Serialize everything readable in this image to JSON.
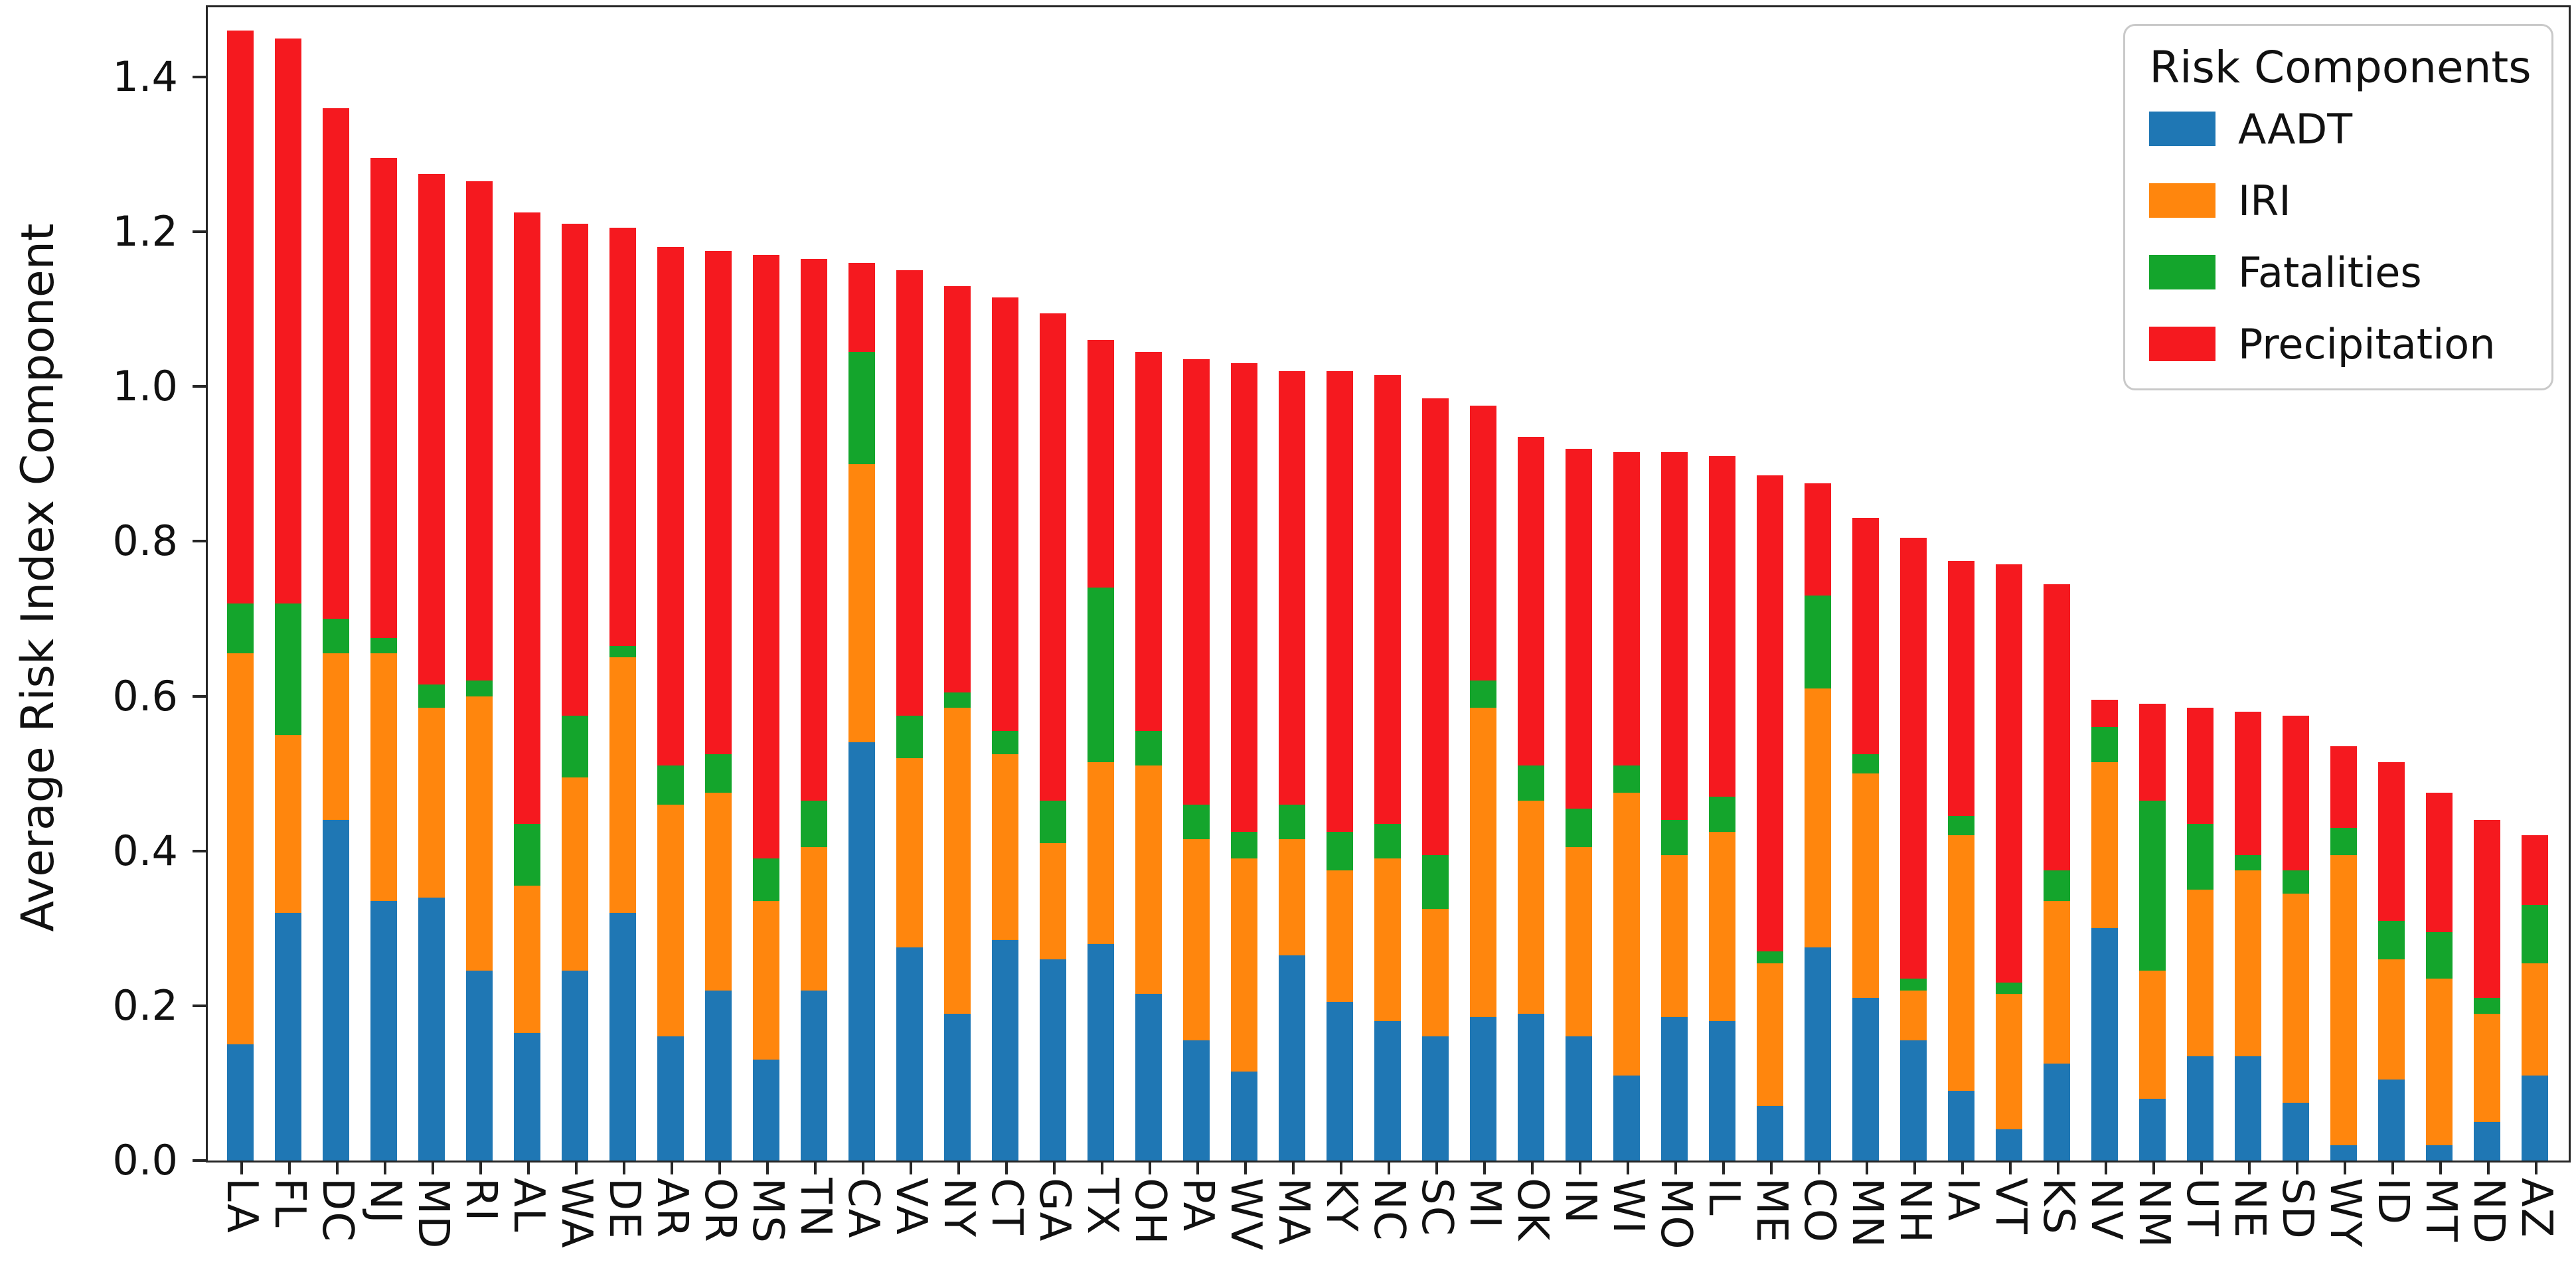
{
  "chart_data": {
    "type": "bar",
    "stacked": true,
    "title": "",
    "xlabel": "",
    "ylabel": "Average Risk Index Component",
    "ylim": [
      0,
      1.49
    ],
    "yticks": [
      "0.0",
      "0.2",
      "0.4",
      "0.6",
      "0.8",
      "1.0",
      "1.2",
      "1.4"
    ],
    "ytick_values": [
      0.0,
      0.2,
      0.4,
      0.6,
      0.8,
      1.0,
      1.2,
      1.4
    ],
    "grid": false,
    "legend": {
      "title": "Risk Components",
      "position": "upper right",
      "entries": [
        "AADT",
        "IRI",
        "Fatalities",
        "Precipitation"
      ]
    },
    "categories": [
      "LA",
      "FL",
      "DC",
      "NJ",
      "MD",
      "RI",
      "AL",
      "WA",
      "DE",
      "AR",
      "OR",
      "MS",
      "TN",
      "CA",
      "VA",
      "NY",
      "CT",
      "GA",
      "TX",
      "OH",
      "PA",
      "WV",
      "MA",
      "KY",
      "NC",
      "SC",
      "MI",
      "OK",
      "IN",
      "WI",
      "MO",
      "IL",
      "ME",
      "CO",
      "MN",
      "NH",
      "IA",
      "VT",
      "KS",
      "NV",
      "NM",
      "UT",
      "NE",
      "SD",
      "WY",
      "ID",
      "MT",
      "ND",
      "AZ"
    ],
    "series": [
      {
        "name": "AADT",
        "color": "#1f77b4",
        "values": [
          0.15,
          0.32,
          0.44,
          0.335,
          0.34,
          0.245,
          0.165,
          0.245,
          0.32,
          0.16,
          0.22,
          0.13,
          0.22,
          0.54,
          0.275,
          0.19,
          0.285,
          0.26,
          0.28,
          0.215,
          0.155,
          0.115,
          0.265,
          0.205,
          0.18,
          0.16,
          0.185,
          0.19,
          0.16,
          0.11,
          0.185,
          0.18,
          0.07,
          0.275,
          0.21,
          0.155,
          0.09,
          0.04,
          0.125,
          0.3,
          0.08,
          0.135,
          0.135,
          0.075,
          0.02,
          0.105,
          0.02,
          0.05,
          0.11
        ]
      },
      {
        "name": "IRI",
        "color": "#ff860d",
        "values": [
          0.505,
          0.23,
          0.215,
          0.32,
          0.245,
          0.355,
          0.19,
          0.25,
          0.33,
          0.3,
          0.255,
          0.205,
          0.185,
          0.36,
          0.245,
          0.395,
          0.24,
          0.15,
          0.235,
          0.295,
          0.26,
          0.275,
          0.15,
          0.17,
          0.21,
          0.165,
          0.4,
          0.275,
          0.245,
          0.365,
          0.21,
          0.245,
          0.185,
          0.335,
          0.29,
          0.065,
          0.33,
          0.175,
          0.21,
          0.215,
          0.165,
          0.215,
          0.24,
          0.27,
          0.375,
          0.155,
          0.215,
          0.14,
          0.145
        ]
      },
      {
        "name": "Fatalities",
        "color": "#14a52c",
        "values": [
          0.065,
          0.17,
          0.045,
          0.02,
          0.03,
          0.02,
          0.08,
          0.08,
          0.015,
          0.05,
          0.05,
          0.055,
          0.06,
          0.145,
          0.055,
          0.02,
          0.03,
          0.055,
          0.225,
          0.045,
          0.045,
          0.035,
          0.045,
          0.05,
          0.045,
          0.07,
          0.035,
          0.045,
          0.05,
          0.035,
          0.045,
          0.045,
          0.015,
          0.12,
          0.025,
          0.015,
          0.025,
          0.015,
          0.04,
          0.045,
          0.22,
          0.085,
          0.02,
          0.03,
          0.035,
          0.05,
          0.06,
          0.02,
          0.075
        ]
      },
      {
        "name": "Precipitation",
        "color": "#f5191f",
        "values": [
          0.74,
          0.73,
          0.66,
          0.62,
          0.66,
          0.645,
          0.79,
          0.635,
          0.54,
          0.67,
          0.65,
          0.78,
          0.7,
          0.115,
          0.575,
          0.525,
          0.56,
          0.63,
          0.32,
          0.49,
          0.575,
          0.605,
          0.56,
          0.595,
          0.58,
          0.59,
          0.355,
          0.425,
          0.465,
          0.405,
          0.475,
          0.44,
          0.615,
          0.145,
          0.305,
          0.57,
          0.33,
          0.54,
          0.37,
          0.035,
          0.125,
          0.15,
          0.185,
          0.2,
          0.105,
          0.205,
          0.18,
          0.23,
          0.09
        ]
      }
    ]
  },
  "y_axis": {
    "title": "Average Risk Index Component"
  },
  "legend_box": {
    "title": "Risk Components",
    "items": [
      {
        "label": "AADT",
        "color": "#1f77b4"
      },
      {
        "label": "IRI",
        "color": "#ff860d"
      },
      {
        "label": "Fatalities",
        "color": "#14a52c"
      },
      {
        "label": "Precipitation",
        "color": "#f5191f"
      }
    ]
  }
}
